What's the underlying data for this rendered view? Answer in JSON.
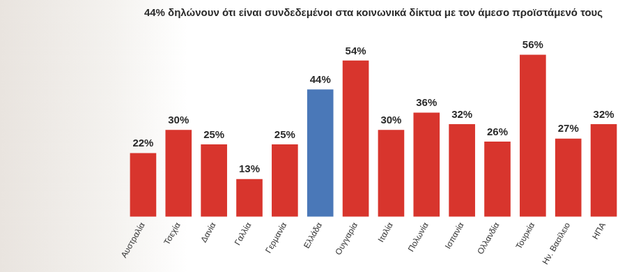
{
  "chart_data": {
    "type": "bar",
    "title": "44% δηλώνουν ότι είναι συνδεδεμένοι στα κοινωνικά δίκτυα με τον άμεσο προϊστάμενό τους",
    "categories": [
      "Αυστραλία",
      "Τσεχία",
      "Δανία",
      "Γαλλία",
      "Γερμανία",
      "Ελλάδα",
      "Ουγγαρία",
      "Ιταλία",
      "Πολωνία",
      "Ισπανία",
      "Ολλανδία",
      "Τουρκία",
      "Ην. Βασίλειο",
      "ΗΠΑ"
    ],
    "values": [
      22,
      30,
      25,
      13,
      25,
      44,
      54,
      30,
      36,
      32,
      26,
      56,
      27,
      32
    ],
    "value_labels": [
      "22%",
      "30%",
      "25%",
      "13%",
      "25%",
      "44%",
      "54%",
      "30%",
      "36%",
      "32%",
      "26%",
      "56%",
      "27%",
      "32%"
    ],
    "colors": [
      "#d8352d",
      "#d8352d",
      "#d8352d",
      "#d8352d",
      "#d8352d",
      "#4a78b8",
      "#d8352d",
      "#d8352d",
      "#d8352d",
      "#d8352d",
      "#d8352d",
      "#d8352d",
      "#d8352d",
      "#d8352d"
    ],
    "data_labels": true,
    "tick_labels": "x",
    "grid": false
  }
}
